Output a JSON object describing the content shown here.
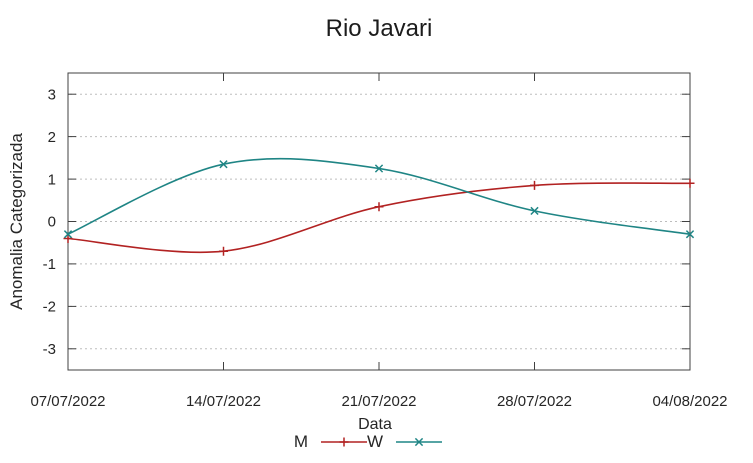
{
  "chart_data": {
    "type": "line",
    "title": "Rio Javari",
    "xlabel": "Data",
    "ylabel": "Anomalia Categorizada",
    "categories": [
      "07/07/2022",
      "14/07/2022",
      "21/07/2022",
      "28/07/2022",
      "04/08/2022"
    ],
    "series": [
      {
        "name": "M",
        "color": "#b22222",
        "marker": "plus",
        "values": [
          -0.4,
          -0.7,
          0.35,
          0.85,
          0.9
        ]
      },
      {
        "name": "W",
        "color": "#1f8585",
        "marker": "cross",
        "values": [
          -0.3,
          1.35,
          1.25,
          0.25,
          -0.3
        ]
      }
    ],
    "ylim": [
      -3.5,
      3.5
    ],
    "yticks": [
      3,
      2,
      1,
      0,
      -1,
      -2,
      -3
    ],
    "grid": {
      "horizontal": true,
      "style": "dotted",
      "color": "#bdbdbd"
    },
    "legend": {
      "position": "bottom-center",
      "entries": [
        "M",
        "W"
      ]
    },
    "smooth": true,
    "axis_color": "#404040",
    "text_color": "#262626",
    "background": "#ffffff"
  }
}
